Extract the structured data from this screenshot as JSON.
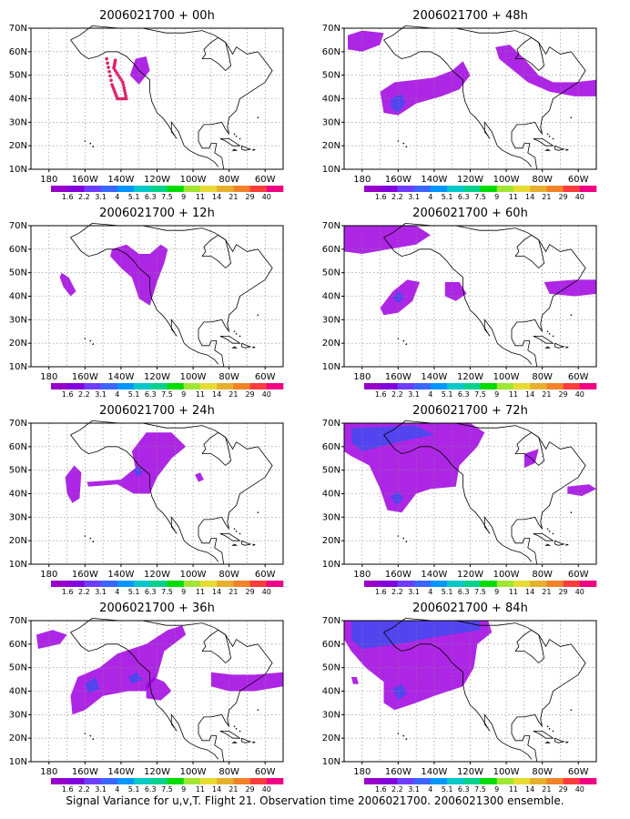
{
  "caption": "Signal Variance for u,v,T. Flight 21. Observation time 2006021700. 2006021300 ensemble.",
  "x_ticks": [
    "180",
    "160W",
    "140W",
    "120W",
    "100W",
    "80W",
    "60W"
  ],
  "y_ticks": [
    "10N",
    "20N",
    "30N",
    "40N",
    "50N",
    "60N",
    "70N"
  ],
  "colorbar": {
    "labels": [
      "1.6",
      "2.2",
      "3.1",
      "4",
      "5.1",
      "6.3",
      "7.5",
      "9",
      "11",
      "14",
      "21",
      "29",
      "40"
    ],
    "colors": [
      "#9600c8",
      "#8200dc",
      "#6e3cff",
      "#3c64ff",
      "#0096ff",
      "#00c8c8",
      "#00d28c",
      "#00dc00",
      "#a0e632",
      "#e6dc32",
      "#e6af2d",
      "#f08228",
      "#fa3c3c",
      "#f00082"
    ]
  },
  "fill_colors": {
    "purple": "#a000e0",
    "light_purple": "#c040ff",
    "blue": "#4848f0",
    "track": "#e0206a"
  },
  "panels": [
    {
      "title": "2006021700 + 00h"
    },
    {
      "title": "2006021700 + 48h"
    },
    {
      "title": "2006021700 + 12h"
    },
    {
      "title": "2006021700 + 60h"
    },
    {
      "title": "2006021700 + 24h"
    },
    {
      "title": "2006021700 + 72h"
    },
    {
      "title": "2006021700 + 36h"
    },
    {
      "title": "2006021700 + 84h"
    }
  ]
}
